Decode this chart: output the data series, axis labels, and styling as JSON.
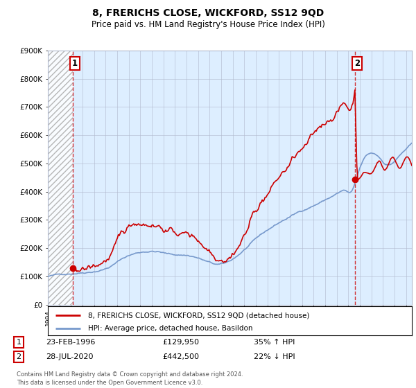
{
  "title": "8, FRERICHS CLOSE, WICKFORD, SS12 9QD",
  "subtitle": "Price paid vs. HM Land Registry's House Price Index (HPI)",
  "ylim": [
    0,
    900000
  ],
  "xlim_start": 1994.0,
  "xlim_end": 2025.5,
  "sale1_date": 1996.15,
  "sale1_price": 129950,
  "sale2_date": 2020.57,
  "sale2_price": 442500,
  "property_color": "#cc0000",
  "hpi_color": "#7799cc",
  "background_color": "#ddeeff",
  "grid_color": "#b0b8cc",
  "hatch_color": "#aaaaaa",
  "legend_property": "8, FRERICHS CLOSE, WICKFORD, SS12 9QD (detached house)",
  "legend_hpi": "HPI: Average price, detached house, Basildon",
  "table_row1": [
    "1",
    "23-FEB-1996",
    "£129,950",
    "35% ↑ HPI"
  ],
  "table_row2": [
    "2",
    "28-JUL-2020",
    "£442,500",
    "22% ↓ HPI"
  ],
  "footer": "Contains HM Land Registry data © Crown copyright and database right 2024.\nThis data is licensed under the Open Government Licence v3.0."
}
